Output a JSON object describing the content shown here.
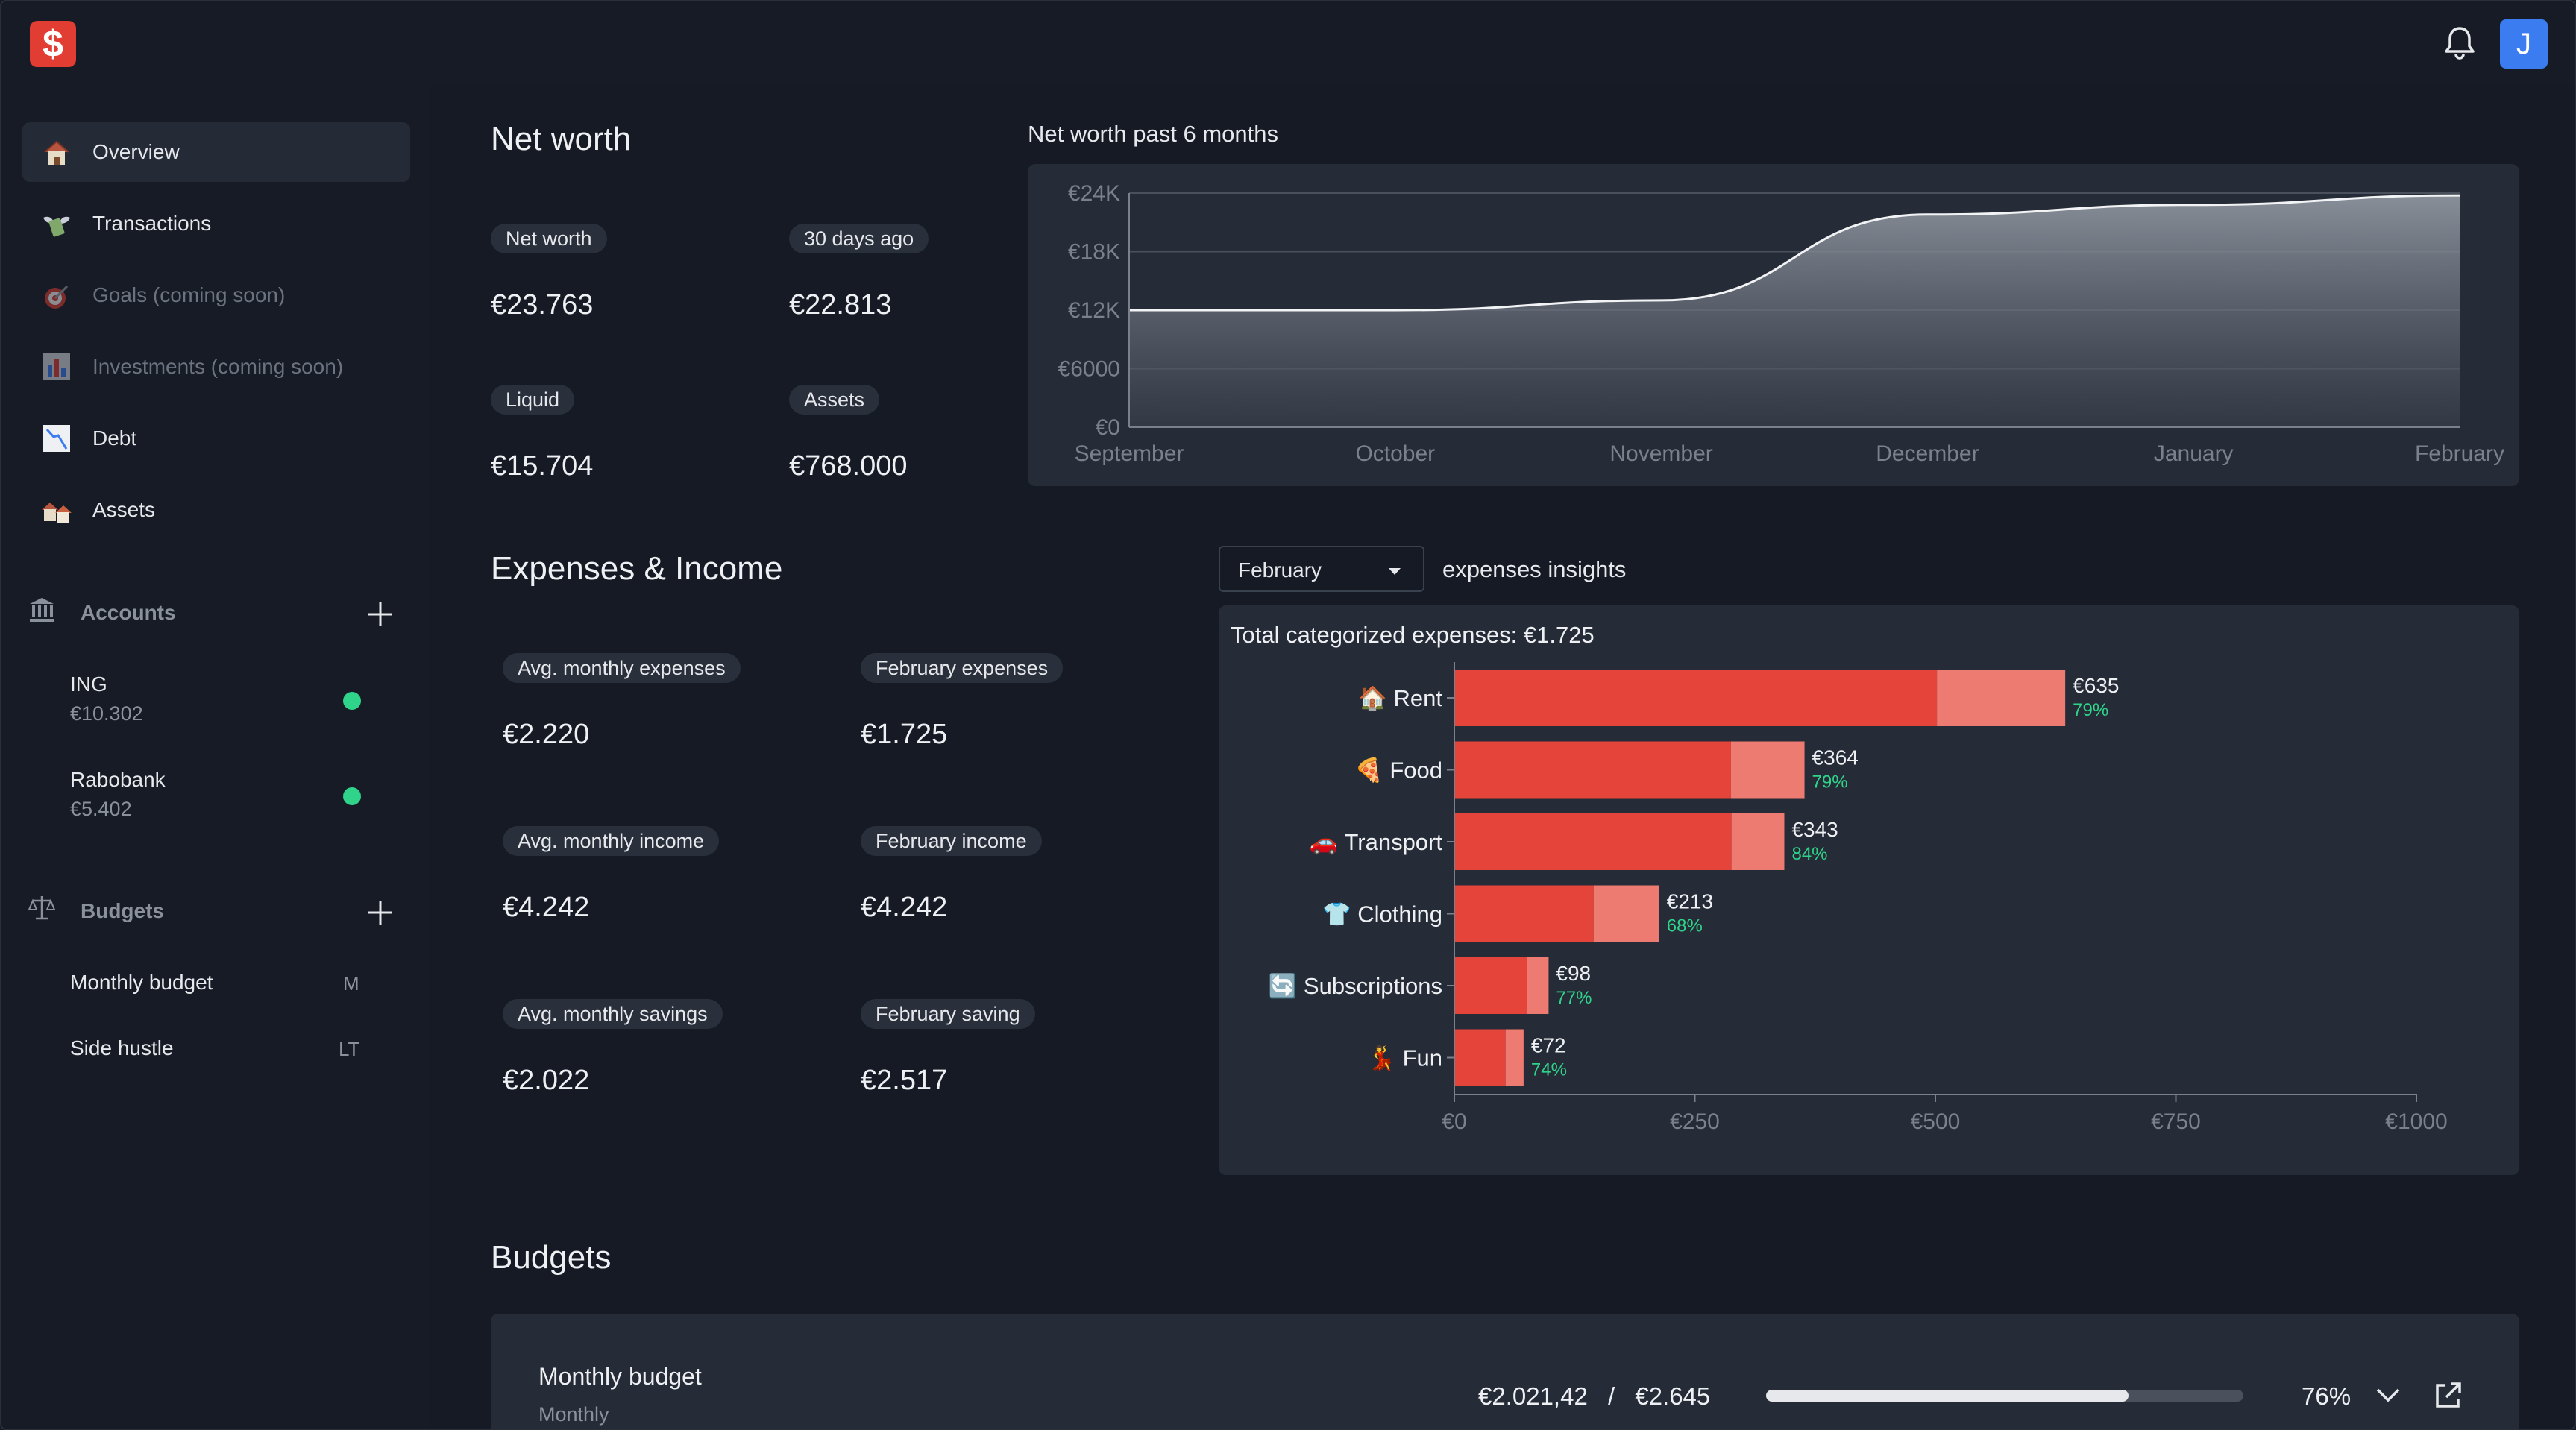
{
  "app": {
    "logo_glyph": "$",
    "user_initial": "J",
    "accent": "#e23d32",
    "avatar_color": "#3b7cf0"
  },
  "sidebar": {
    "nav": [
      {
        "label": "Overview",
        "icon": "house-icon",
        "active": true
      },
      {
        "label": "Transactions",
        "icon": "money-wings-icon"
      },
      {
        "label": "Goals (coming soon)",
        "icon": "target-icon",
        "disabled": true
      },
      {
        "label": "Investments (coming soon)",
        "icon": "bar-chart-icon",
        "disabled": true
      },
      {
        "label": "Debt",
        "icon": "chart-decreasing-icon"
      },
      {
        "label": "Assets",
        "icon": "houses-icon"
      }
    ],
    "accounts_title": "Accounts",
    "accounts": [
      {
        "name": "ING",
        "balance": "€10.302"
      },
      {
        "name": "Rabobank",
        "balance": "€5.402"
      }
    ],
    "budgets_title": "Budgets",
    "budgets": [
      {
        "name": "Monthly budget",
        "tag": "M"
      },
      {
        "name": "Side hustle",
        "tag": "LT"
      }
    ]
  },
  "networth": {
    "title": "Net worth",
    "stats": [
      {
        "label": "Net worth",
        "value": "€23.763"
      },
      {
        "label": "30 days ago",
        "value": "€22.813"
      },
      {
        "label": "Liquid",
        "value": "€15.704"
      },
      {
        "label": "Assets",
        "value": "€768.000"
      }
    ]
  },
  "expenses": {
    "title": "Expenses & Income",
    "month_select": "February",
    "insights_label": "expenses insights",
    "stats": [
      {
        "label": "Avg. monthly expenses",
        "value": "€2.220"
      },
      {
        "label": "February expenses",
        "value": "€1.725"
      },
      {
        "label": "Avg. monthly income",
        "value": "€4.242"
      },
      {
        "label": "February income",
        "value": "€4.242"
      },
      {
        "label": "Avg. monthly savings",
        "value": "€2.022"
      },
      {
        "label": "February saving",
        "value": "€2.517"
      }
    ]
  },
  "budgets_section": {
    "title": "Budgets",
    "card": {
      "name": "Monthly budget",
      "period": "Monthly",
      "spent": "€2.021,42",
      "separator": "/",
      "total": "€2.645",
      "percent": "76%",
      "progress": 0.76
    }
  },
  "chart_data": [
    {
      "type": "area",
      "title": "Net worth past 6 months",
      "x": [
        "September",
        "October",
        "November",
        "December",
        "January",
        "February"
      ],
      "values": [
        12000,
        12000,
        13000,
        21800,
        22800,
        23763
      ],
      "ylim": [
        0,
        24000
      ],
      "yticks": [
        "€0",
        "€6000",
        "€12K",
        "€18K",
        "€24K"
      ],
      "grid": true
    },
    {
      "type": "bar",
      "orientation": "horizontal",
      "title": "Total categorized expenses:  €1.725",
      "categories": [
        "🏠 Rent",
        "🍕 Food",
        "🚗 Transport",
        "👕 Clothing",
        "🔄 Subscriptions",
        "💃 Fun"
      ],
      "values": [
        635,
        364,
        343,
        213,
        98,
        72
      ],
      "value_labels": [
        "€635",
        "€364",
        "€343",
        "€213",
        "€98",
        "€72"
      ],
      "percent_labels": [
        "79%",
        "79%",
        "84%",
        "68%",
        "77%",
        "74%"
      ],
      "percents": [
        0.79,
        0.79,
        0.84,
        0.68,
        0.77,
        0.74
      ],
      "xlim": [
        0,
        1000
      ],
      "xticks": [
        "€0",
        "€250",
        "€500",
        "€750",
        "€1000"
      ],
      "colors": {
        "dark": "#e4443a",
        "light": "#ee7b72",
        "percent": "#2fd38a"
      }
    }
  ]
}
